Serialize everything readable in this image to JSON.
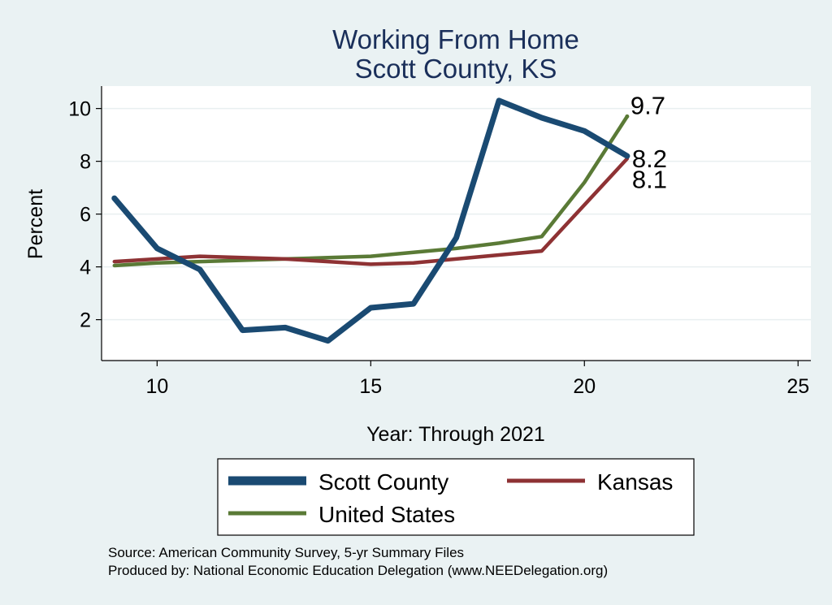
{
  "chart_data": {
    "type": "line",
    "title": "Working From Home",
    "subtitle": "Scott County, KS",
    "xlabel": "Year: Through 2021",
    "ylabel": "Percent",
    "xlim": [
      8.7,
      25.3
    ],
    "ylim": [
      0.45,
      10.85
    ],
    "xticks": [
      10,
      15,
      20,
      25
    ],
    "yticks": [
      2,
      4,
      6,
      8,
      10
    ],
    "grid": true,
    "legend_position": "bottom",
    "series": [
      {
        "name": "Scott County",
        "color": "#1a4a72",
        "x": [
          9,
          10,
          11,
          12,
          13,
          14,
          15,
          16,
          17,
          18,
          19,
          20,
          21
        ],
        "values": [
          6.6,
          4.7,
          3.9,
          1.6,
          1.7,
          1.2,
          2.45,
          2.6,
          5.1,
          10.3,
          9.65,
          9.15,
          8.2
        ],
        "end_label": "8.2"
      },
      {
        "name": "Kansas",
        "color": "#8e3234",
        "x": [
          9,
          10,
          11,
          12,
          13,
          14,
          15,
          16,
          17,
          18,
          19,
          20,
          21
        ],
        "values": [
          4.2,
          4.3,
          4.4,
          4.35,
          4.3,
          4.2,
          4.1,
          4.15,
          4.3,
          4.45,
          4.6,
          6.35,
          8.1
        ],
        "end_label": "8.1"
      },
      {
        "name": "United States",
        "color": "#5a7a36",
        "x": [
          9,
          10,
          11,
          12,
          13,
          14,
          15,
          16,
          17,
          18,
          19,
          20,
          21
        ],
        "values": [
          4.05,
          4.15,
          4.2,
          4.25,
          4.3,
          4.35,
          4.4,
          4.55,
          4.7,
          4.9,
          5.15,
          7.2,
          9.7
        ],
        "end_label": "9.7"
      }
    ]
  },
  "source": {
    "line1": "Source: American Community Survey, 5-yr Summary Files",
    "line2": "Produced by: National Economic Education Delegation (www.NEEDelegation.org)"
  }
}
